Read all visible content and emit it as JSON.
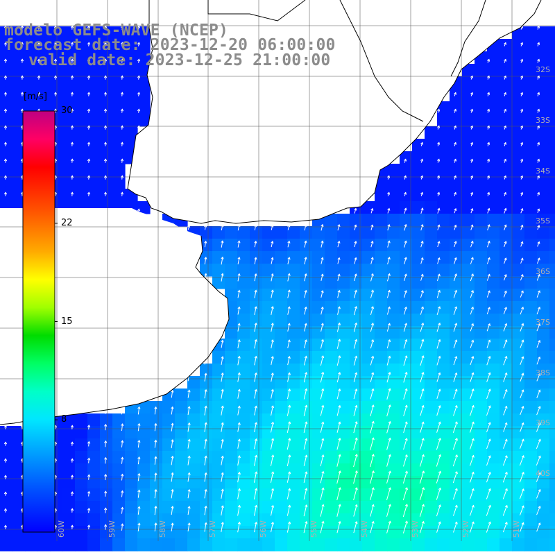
{
  "title": {
    "model_line": "modelo GEFS-WAVE (NCEP)",
    "forecast_line": "forecast date: 2023-12-20 06:00:00",
    "valid_line": "valid date: 2023-12-25 21:00:00"
  },
  "colorbar": {
    "unit_label": "[m/s]",
    "min": 0,
    "max": 30,
    "tick_labels": [
      {
        "value": 8,
        "label": "8"
      },
      {
        "value": 15,
        "label": "15"
      },
      {
        "value": 22,
        "label": "22"
      },
      {
        "value": 30,
        "label": "30"
      }
    ],
    "colors": [
      "#0000ff",
      "#00a8ff",
      "#00ffff",
      "#00ff7f",
      "#00d000",
      "#a0ff00",
      "#ffff00",
      "#ffa000",
      "#ff4000",
      "#ff0000",
      "#ff0060",
      "#c00080"
    ]
  },
  "map": {
    "lon_labels": [
      "60W",
      "59W",
      "58W",
      "57W",
      "56W",
      "55W",
      "54W",
      "53W",
      "52W",
      "51W"
    ],
    "lat_labels": [
      "32S",
      "33S",
      "34S",
      "35S",
      "36S",
      "37S",
      "38S",
      "39S",
      "40S"
    ],
    "field": "wind speed with direction arrows",
    "wind_direction": "from south-southwest (arrows pointing north-northeast)",
    "speed_range_shown": [
      2,
      12
    ]
  }
}
